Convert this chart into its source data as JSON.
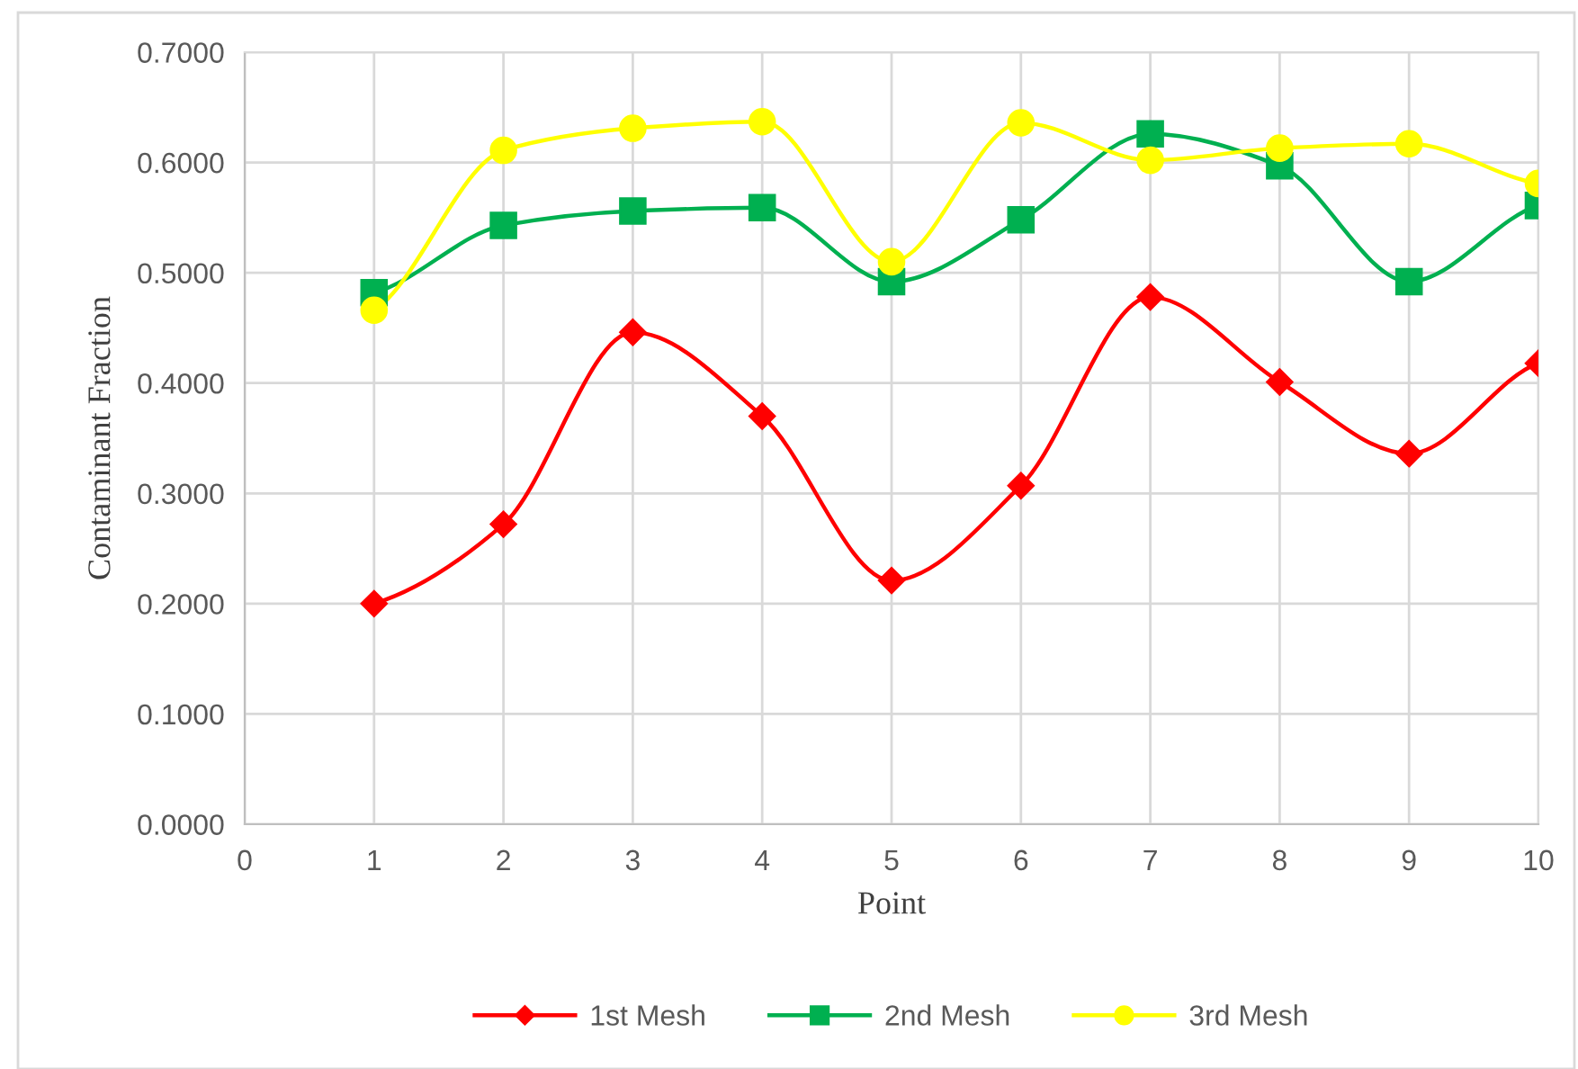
{
  "chart_data": {
    "type": "line",
    "xlabel": "Point",
    "ylabel": "Contaminant Fraction",
    "x": [
      1,
      2,
      3,
      4,
      5,
      6,
      7,
      8,
      9,
      10
    ],
    "xlim": [
      0,
      10
    ],
    "xticks": [
      0,
      1,
      2,
      3,
      4,
      5,
      6,
      7,
      8,
      9,
      10
    ],
    "ylim": [
      0,
      0.7
    ],
    "yticks": [
      {
        "value": 0,
        "label": "0.0000"
      },
      {
        "value": 0.1,
        "label": "0.1000"
      },
      {
        "value": 0.2,
        "label": "0.2000"
      },
      {
        "value": 0.3,
        "label": "0.3000"
      },
      {
        "value": 0.4,
        "label": "0.4000"
      },
      {
        "value": 0.5,
        "label": "0.5000"
      },
      {
        "value": 0.6,
        "label": "0.6000"
      },
      {
        "value": 0.7,
        "label": "0.7000"
      }
    ],
    "grid": true,
    "legend": "bottom",
    "line_style": "solid",
    "series": [
      {
        "name": "1st Mesh",
        "color": "#ff0000",
        "marker": "diamond",
        "values": [
          0.2,
          0.272,
          0.446,
          0.37,
          0.221,
          0.307,
          0.478,
          0.401,
          0.336,
          0.418
        ]
      },
      {
        "name": "2nd Mesh",
        "color": "#00b050",
        "marker": "square",
        "values": [
          0.482,
          0.543,
          0.556,
          0.559,
          0.492,
          0.548,
          0.626,
          0.597,
          0.492,
          0.561
        ]
      },
      {
        "name": "3rd Mesh",
        "color": "#ffff00",
        "marker": "circle",
        "values": [
          0.466,
          0.611,
          0.631,
          0.637,
          0.51,
          0.636,
          0.602,
          0.613,
          0.617,
          0.581
        ]
      }
    ]
  }
}
